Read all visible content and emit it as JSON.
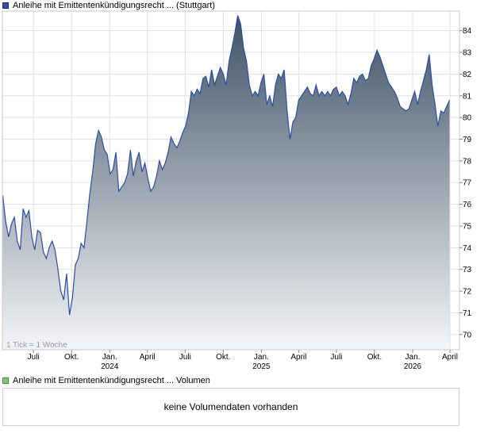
{
  "legend": {
    "price_label": "Anleihe mit Emittentenkündigungsrecht ... (Stuttgart)",
    "volume_label": "Anleihe mit Emittentenkündigungsrecht ... Volumen"
  },
  "tick_note": "1 Tick = 1 Woche",
  "volume_panel": {
    "message": "keine Volumendaten vorhanden"
  },
  "colors": {
    "line": "#2b4fa3",
    "fill_top": "#3f5366",
    "fill_bottom": "#f4f5f7",
    "grid": "#e0e0e0",
    "border": "#c8c8c8"
  },
  "chart_data": {
    "type": "area",
    "title": "",
    "xlabel": "",
    "ylabel": "",
    "ylim": [
      69.3,
      84.9
    ],
    "y_ticks": [
      70,
      71,
      72,
      73,
      74,
      75,
      76,
      77,
      78,
      79,
      80,
      81,
      82,
      83,
      84
    ],
    "x_ticks": [
      {
        "label": "Juli",
        "year": "",
        "date": "2023-07-01"
      },
      {
        "label": "Okt.",
        "year": "",
        "date": "2023-10-01"
      },
      {
        "label": "Jan.",
        "year": "2024",
        "date": "2024-01-01"
      },
      {
        "label": "April",
        "year": "",
        "date": "2024-04-01"
      },
      {
        "label": "Juli",
        "year": "",
        "date": "2024-07-01"
      },
      {
        "label": "Okt.",
        "year": "",
        "date": "2024-10-01"
      },
      {
        "label": "Jan.",
        "year": "2025",
        "date": "2025-01-01"
      },
      {
        "label": "April",
        "year": "",
        "date": "2025-04-01"
      },
      {
        "label": "Juli",
        "year": "",
        "date": "2025-07-01"
      },
      {
        "label": "Okt.",
        "year": "",
        "date": "2025-10-01"
      },
      {
        "label": "Jan.",
        "year": "2026",
        "date": "2026-01-01"
      },
      {
        "label": "April",
        "year": "",
        "date": "2026-04-01"
      }
    ],
    "grid": true,
    "series": [
      {
        "name": "Anleihe mit Emittentenkündigungsrecht ... (Stuttgart)",
        "points": [
          [
            "2023-04-18",
            76.4
          ],
          [
            "2023-04-25",
            75.2
          ],
          [
            "2023-05-02",
            74.5
          ],
          [
            "2023-05-09",
            75.1
          ],
          [
            "2023-05-16",
            75.4
          ],
          [
            "2023-05-23",
            74.3
          ],
          [
            "2023-05-30",
            73.9
          ],
          [
            "2023-06-06",
            75.8
          ],
          [
            "2023-06-13",
            75.4
          ],
          [
            "2023-06-20",
            75.7
          ],
          [
            "2023-06-27",
            74.5
          ],
          [
            "2023-07-04",
            73.9
          ],
          [
            "2023-07-11",
            74.8
          ],
          [
            "2023-07-18",
            74.7
          ],
          [
            "2023-07-25",
            73.8
          ],
          [
            "2023-08-01",
            73.5
          ],
          [
            "2023-08-08",
            74.0
          ],
          [
            "2023-08-15",
            74.3
          ],
          [
            "2023-08-22",
            73.9
          ],
          [
            "2023-08-29",
            73.0
          ],
          [
            "2023-09-05",
            72.0
          ],
          [
            "2023-09-12",
            71.6
          ],
          [
            "2023-09-19",
            72.8
          ],
          [
            "2023-09-26",
            70.9
          ],
          [
            "2023-10-03",
            71.7
          ],
          [
            "2023-10-10",
            73.2
          ],
          [
            "2023-10-17",
            73.5
          ],
          [
            "2023-10-24",
            74.2
          ],
          [
            "2023-10-31",
            74.0
          ],
          [
            "2023-11-07",
            75.2
          ],
          [
            "2023-11-14",
            76.5
          ],
          [
            "2023-11-21",
            77.5
          ],
          [
            "2023-11-28",
            78.8
          ],
          [
            "2023-12-05",
            79.4
          ],
          [
            "2023-12-12",
            79.1
          ],
          [
            "2023-12-19",
            78.5
          ],
          [
            "2023-12-26",
            78.3
          ],
          [
            "2024-01-02",
            77.4
          ],
          [
            "2024-01-09",
            77.6
          ],
          [
            "2024-01-16",
            78.4
          ],
          [
            "2024-01-23",
            76.6
          ],
          [
            "2024-01-30",
            76.8
          ],
          [
            "2024-02-06",
            77.0
          ],
          [
            "2024-02-13",
            77.4
          ],
          [
            "2024-02-20",
            78.5
          ],
          [
            "2024-02-27",
            77.3
          ],
          [
            "2024-03-05",
            78.0
          ],
          [
            "2024-03-12",
            78.4
          ],
          [
            "2024-03-19",
            77.5
          ],
          [
            "2024-03-26",
            77.9
          ],
          [
            "2024-04-02",
            77.2
          ],
          [
            "2024-04-09",
            76.6
          ],
          [
            "2024-04-16",
            76.8
          ],
          [
            "2024-04-23",
            77.3
          ],
          [
            "2024-04-30",
            78.0
          ],
          [
            "2024-05-07",
            77.6
          ],
          [
            "2024-05-14",
            77.9
          ],
          [
            "2024-05-21",
            78.4
          ],
          [
            "2024-05-28",
            79.1
          ],
          [
            "2024-06-04",
            78.8
          ],
          [
            "2024-06-11",
            78.6
          ],
          [
            "2024-06-18",
            78.9
          ],
          [
            "2024-06-25",
            79.3
          ],
          [
            "2024-07-02",
            79.6
          ],
          [
            "2024-07-09",
            80.2
          ],
          [
            "2024-07-16",
            81.2
          ],
          [
            "2024-07-23",
            81.0
          ],
          [
            "2024-07-30",
            81.3
          ],
          [
            "2024-08-06",
            81.1
          ],
          [
            "2024-08-13",
            81.8
          ],
          [
            "2024-08-20",
            81.9
          ],
          [
            "2024-08-27",
            81.4
          ],
          [
            "2024-09-03",
            82.2
          ],
          [
            "2024-09-10",
            81.5
          ],
          [
            "2024-09-17",
            81.9
          ],
          [
            "2024-09-24",
            82.3
          ],
          [
            "2024-10-01",
            82.0
          ],
          [
            "2024-10-08",
            81.5
          ],
          [
            "2024-10-15",
            82.6
          ],
          [
            "2024-10-22",
            83.2
          ],
          [
            "2024-10-29",
            83.9
          ],
          [
            "2024-11-05",
            84.7
          ],
          [
            "2024-11-12",
            84.3
          ],
          [
            "2024-11-19",
            83.2
          ],
          [
            "2024-11-26",
            82.6
          ],
          [
            "2024-12-03",
            81.5
          ],
          [
            "2024-12-10",
            81.0
          ],
          [
            "2024-12-17",
            81.2
          ],
          [
            "2024-12-24",
            81.0
          ],
          [
            "2024-12-31",
            81.6
          ],
          [
            "2025-01-07",
            82.0
          ],
          [
            "2025-01-14",
            80.6
          ],
          [
            "2025-01-21",
            81.0
          ],
          [
            "2025-01-28",
            80.5
          ],
          [
            "2025-02-04",
            81.5
          ],
          [
            "2025-02-11",
            82.0
          ],
          [
            "2025-02-18",
            81.8
          ],
          [
            "2025-02-25",
            82.2
          ],
          [
            "2025-03-04",
            80.3
          ],
          [
            "2025-03-11",
            79.0
          ],
          [
            "2025-03-18",
            79.8
          ],
          [
            "2025-03-25",
            80.0
          ],
          [
            "2025-04-01",
            80.8
          ],
          [
            "2025-04-08",
            81.0
          ],
          [
            "2025-04-15",
            81.2
          ],
          [
            "2025-04-22",
            81.4
          ],
          [
            "2025-04-29",
            81.1
          ],
          [
            "2025-05-06",
            81.0
          ],
          [
            "2025-05-13",
            81.5
          ],
          [
            "2025-05-20",
            81.0
          ],
          [
            "2025-05-27",
            81.2
          ],
          [
            "2025-06-03",
            81.0
          ],
          [
            "2025-06-10",
            81.2
          ],
          [
            "2025-06-17",
            81.0
          ],
          [
            "2025-06-24",
            81.3
          ],
          [
            "2025-07-01",
            81.4
          ],
          [
            "2025-07-08",
            81.0
          ],
          [
            "2025-07-15",
            81.2
          ],
          [
            "2025-07-22",
            81.0
          ],
          [
            "2025-07-29",
            80.6
          ],
          [
            "2025-08-05",
            81.1
          ],
          [
            "2025-08-12",
            81.8
          ],
          [
            "2025-08-19",
            81.6
          ],
          [
            "2025-08-26",
            81.9
          ],
          [
            "2025-09-02",
            82.0
          ],
          [
            "2025-09-09",
            81.7
          ],
          [
            "2025-09-16",
            81.8
          ],
          [
            "2025-09-23",
            82.4
          ],
          [
            "2025-09-30",
            82.7
          ],
          [
            "2025-10-07",
            83.1
          ],
          [
            "2025-10-14",
            82.8
          ],
          [
            "2025-10-21",
            82.4
          ],
          [
            "2025-10-28",
            82.0
          ],
          [
            "2025-11-04",
            81.6
          ],
          [
            "2025-11-11",
            81.4
          ],
          [
            "2025-11-18",
            81.2
          ],
          [
            "2025-11-25",
            80.9
          ],
          [
            "2025-12-02",
            80.5
          ],
          [
            "2025-12-09",
            80.4
          ],
          [
            "2025-12-16",
            80.3
          ],
          [
            "2025-12-23",
            80.4
          ],
          [
            "2025-12-30",
            80.8
          ],
          [
            "2026-01-06",
            81.2
          ],
          [
            "2026-01-13",
            80.6
          ],
          [
            "2026-01-20",
            81.2
          ],
          [
            "2026-01-27",
            81.7
          ],
          [
            "2026-02-03",
            82.2
          ],
          [
            "2026-02-10",
            82.9
          ],
          [
            "2026-02-17",
            81.5
          ],
          [
            "2026-02-24",
            80.6
          ],
          [
            "2026-03-03",
            79.6
          ],
          [
            "2026-03-10",
            80.3
          ],
          [
            "2026-03-17",
            80.2
          ],
          [
            "2026-03-24",
            80.5
          ],
          [
            "2026-03-31",
            80.8
          ]
        ]
      }
    ]
  }
}
